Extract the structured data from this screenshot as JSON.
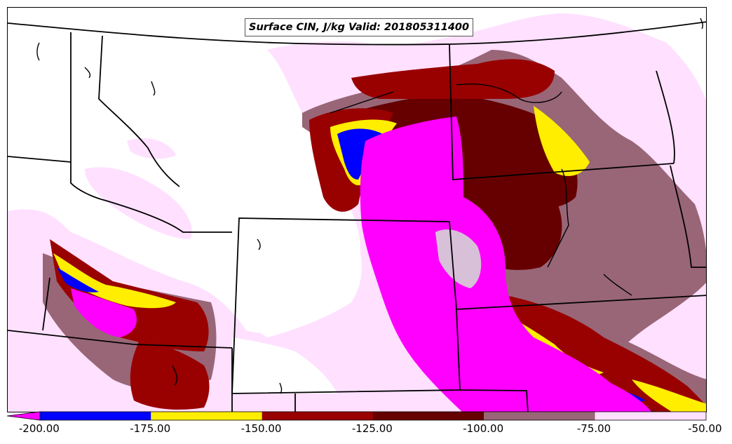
{
  "map": {
    "title": "Surface CIN, J/kg Valid: 201805311400",
    "levels": [
      -200,
      -175,
      -150,
      -125,
      -100,
      -75,
      -50
    ],
    "tick_labels": [
      "-200.00",
      "-175.00",
      "-150.00",
      "-125.00",
      "-100.00",
      "-75.00",
      "-50.00"
    ],
    "color_scale": [
      {
        "range": "< -200",
        "color": "#ff00ff"
      },
      {
        "range": "-200 to -175",
        "color": "#0000ff"
      },
      {
        "range": "-175 to -150",
        "color": "#ffee00"
      },
      {
        "range": "-150 to -125",
        "color": "#990000"
      },
      {
        "range": "-125 to -100",
        "color": "#660000"
      },
      {
        "range": "-100 to -75",
        "color": "#996677"
      },
      {
        "range": "-75 to -50",
        "color": "#ffe0ff"
      }
    ]
  }
}
